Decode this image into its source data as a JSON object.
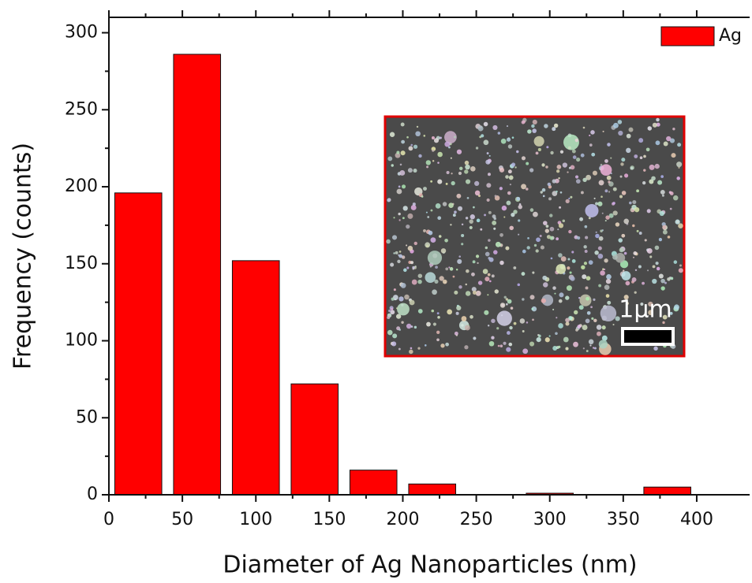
{
  "chart_data": {
    "type": "histogram",
    "x_label": "Diameter of Ag Nanoparticles (nm)",
    "y_label": "Frequency (counts)",
    "bins": [
      0,
      40,
      80,
      120,
      160,
      200,
      240,
      280,
      320,
      360,
      400
    ],
    "series": [
      {
        "name": "Ag",
        "color": "#ff0000",
        "values": [
          196,
          286,
          152,
          72,
          16,
          7,
          0,
          1,
          0,
          5
        ]
      }
    ],
    "xlim": [
      0,
      436
    ],
    "ylim": [
      0,
      310
    ],
    "xticks": [
      0,
      50,
      100,
      150,
      200,
      250,
      300,
      350,
      400
    ],
    "yticks": [
      0,
      50,
      100,
      150,
      200,
      250,
      300
    ],
    "legend": "upper right",
    "annotations": [
      "1μm"
    ]
  }
}
